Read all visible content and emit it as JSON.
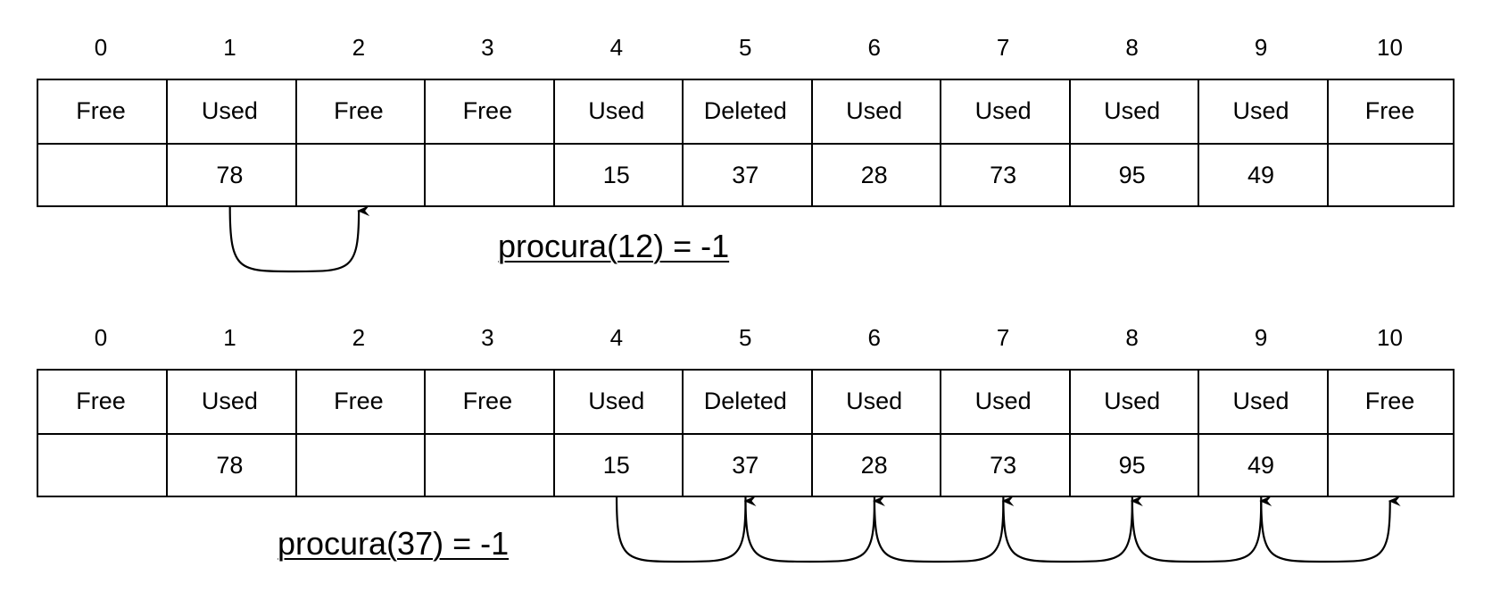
{
  "diagrams": [
    {
      "indices": [
        "0",
        "1",
        "2",
        "3",
        "4",
        "5",
        "6",
        "7",
        "8",
        "9",
        "10"
      ],
      "states": [
        "Free",
        "Used",
        "Free",
        "Free",
        "Used",
        "Deleted",
        "Used",
        "Used",
        "Used",
        "Used",
        "Free"
      ],
      "values": [
        "",
        "78",
        "",
        "",
        "15",
        "37",
        "28",
        "73",
        "95",
        "49",
        ""
      ],
      "caption": "procura(12) = -1",
      "probe_path": [
        1,
        2
      ]
    },
    {
      "indices": [
        "0",
        "1",
        "2",
        "3",
        "4",
        "5",
        "6",
        "7",
        "8",
        "9",
        "10"
      ],
      "states": [
        "Free",
        "Used",
        "Free",
        "Free",
        "Used",
        "Deleted",
        "Used",
        "Used",
        "Used",
        "Used",
        "Free"
      ],
      "values": [
        "",
        "78",
        "",
        "",
        "15",
        "37",
        "28",
        "73",
        "95",
        "49",
        ""
      ],
      "caption": "procura(37) = -1",
      "probe_path": [
        4,
        5,
        6,
        7,
        8,
        9,
        10
      ]
    }
  ]
}
